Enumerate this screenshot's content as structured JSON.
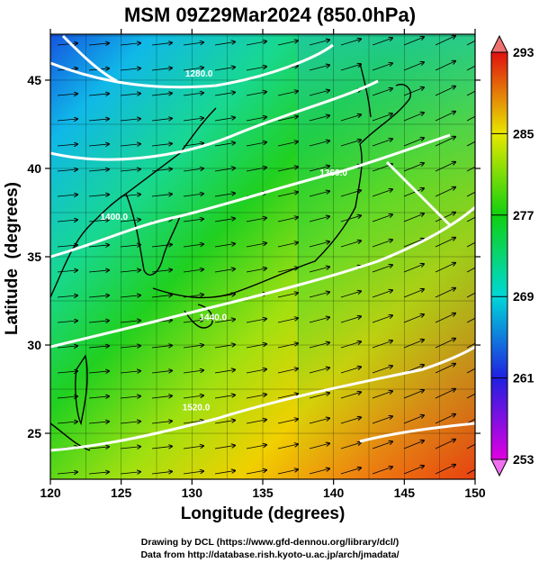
{
  "chart_data": {
    "type": "heatmap",
    "title": "MSM 09Z29Mar2024 (850.0hPa)",
    "xlabel": "Longitude (degrees)",
    "ylabel": "Latitude  (degrees)",
    "xlim": [
      120,
      150
    ],
    "ylim": [
      22.4,
      47.6
    ],
    "xticks": [
      120,
      125,
      130,
      135,
      140,
      145,
      150
    ],
    "yticks": [
      25,
      30,
      35,
      40,
      45
    ],
    "colorbar": {
      "min": 253,
      "max": 293,
      "ticks": [
        253,
        261,
        269,
        277,
        285,
        293
      ],
      "colors": [
        "#e000e0",
        "#2020e0",
        "#00d8d8",
        "#10d010",
        "#e8e800",
        "#e01010"
      ]
    },
    "contour_labels": [
      {
        "text": "1280.0",
        "lon": 130.5,
        "lat": 45.2
      },
      {
        "text": "1360.0",
        "lon": 140.0,
        "lat": 39.6
      },
      {
        "text": "1400.0",
        "lon": 124.5,
        "lat": 37.1
      },
      {
        "text": "1440.0",
        "lon": 131.5,
        "lat": 31.4
      },
      {
        "text": "1520.0",
        "lon": 130.3,
        "lat": 26.3
      }
    ],
    "footer": [
      "Drawing by DCL (https://www.gfd-dennou.org/library/dcl/)",
      "Data from http://database.rish.kyoto-u.ac.jp/arch/jmadata/"
    ]
  }
}
